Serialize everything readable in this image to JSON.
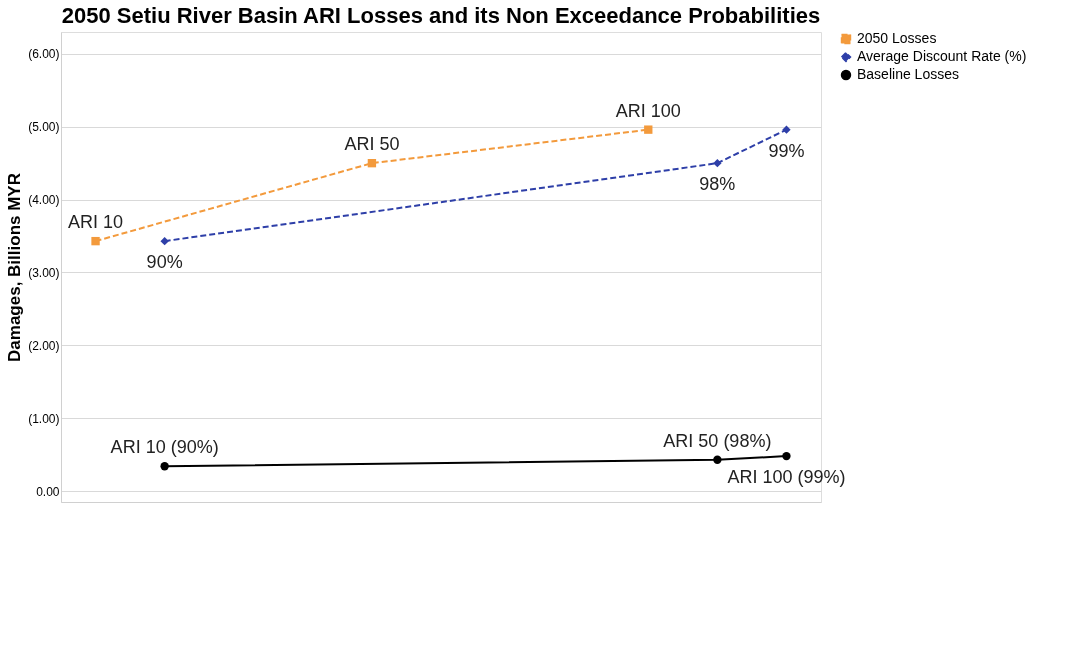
{
  "chart_data": {
    "type": "line",
    "title": "2050 Setiu River Basin ARI Losses and its Non Exceedance Probabilities",
    "ylabel": "Damages, Billions MYR",
    "categories": [
      null,
      null,
      null,
      null,
      null,
      null,
      null,
      null,
      null,
      null,
      null
    ],
    "ylim": [
      -0.15,
      6.3
    ],
    "yticks": [
      {
        "value": 0,
        "label": "0.00"
      },
      {
        "value": 1,
        "label": "(1.00)"
      },
      {
        "value": 2,
        "label": "(2.00)"
      },
      {
        "value": 3,
        "label": "(3.00)"
      },
      {
        "value": 4,
        "label": "(4.00)"
      },
      {
        "value": 5,
        "label": "(5.00)"
      },
      {
        "value": 6,
        "label": "(6.00)"
      }
    ],
    "tick_labels": "y",
    "grid": "y",
    "legend": "right",
    "series": [
      {
        "name": "2050 Losses",
        "color": "#f39a3c",
        "values": [
          3.43,
          null,
          null,
          null,
          4.5,
          null,
          null,
          null,
          4.96,
          null,
          null
        ],
        "marker": "square",
        "line_style": "dashed"
      },
      {
        "name": "Average Discount Rate (%)",
        "color": "#2e3fa8",
        "values": [
          null,
          3.43,
          null,
          null,
          null,
          null,
          null,
          null,
          null,
          4.5,
          4.96
        ],
        "marker": "diamond",
        "line_style": "dashed"
      },
      {
        "name": "Baseline Losses",
        "color": "#000000",
        "values": [
          null,
          0.34,
          null,
          null,
          null,
          null,
          null,
          null,
          null,
          0.43,
          0.48
        ],
        "marker": "circle",
        "line_style": "solid"
      }
    ],
    "annotations": [
      {
        "text": "ARI 10",
        "y": 3.43
      },
      {
        "text": "ARI 50",
        "y": 4.5
      },
      {
        "text": "ARI 100",
        "y": 4.96
      },
      {
        "text": "90%",
        "y": 3.43
      },
      {
        "text": "98%",
        "y": 4.5
      },
      {
        "text": "99%",
        "y": 4.96
      },
      {
        "text": "ARI 10 (90%)",
        "y": 0.34
      },
      {
        "text": "ARI 50 (98%)",
        "y": 0.43
      },
      {
        "text": "ARI 100 (99%)",
        "y": 0.48
      }
    ]
  }
}
